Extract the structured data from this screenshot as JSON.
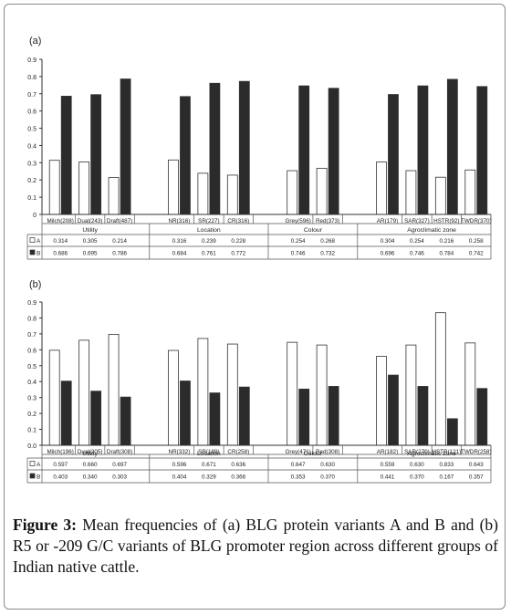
{
  "caption": {
    "label": "Figure 3:",
    "text": " Mean frequencies of (a) BLG protein variants A and B and (b) R5 or -209 G/C variants of BLG promoter region across different groups of Indian native cattle."
  },
  "chart_data": [
    {
      "type": "bar",
      "panel_label": "(a)",
      "ylim": [
        0,
        0.9
      ],
      "yticks": [
        "0",
        "0.1",
        "0.2",
        "0.3",
        "0.4",
        "0.5",
        "0.6",
        "0.7",
        "0.8",
        "0.9"
      ],
      "categories": [
        "Milch(208)",
        "Dual(243)",
        "Draft(487)",
        "NR(316)",
        "SR(227)",
        "CR(316)",
        "Grey(596)",
        "Red(373)",
        "AR(179)",
        "SAR(327)",
        "HSTR(92)",
        "TWDR(370)"
      ],
      "groups": [
        {
          "name": "Utility",
          "size": 3
        },
        {
          "name": "Location",
          "size": 3
        },
        {
          "name": "Colour",
          "size": 2
        },
        {
          "name": "Agroclimatic zone",
          "size": 4
        }
      ],
      "series": [
        {
          "name": "A",
          "color": "#ffffff",
          "values": [
            0.314,
            0.305,
            0.214,
            0.316,
            0.239,
            0.228,
            0.254,
            0.268,
            0.304,
            0.254,
            0.216,
            0.258
          ],
          "labels": [
            "0.314",
            "0.305",
            "0.214",
            "0.316",
            "0.239",
            "0.228",
            "0.254",
            "0.268",
            "0.304",
            "0.254",
            "0.216",
            "0.258"
          ]
        },
        {
          "name": "B",
          "color": "#2b2b2b",
          "values": [
            0.686,
            0.695,
            0.786,
            0.684,
            0.761,
            0.772,
            0.746,
            0.732,
            0.696,
            0.746,
            0.784,
            0.742
          ],
          "labels": [
            "0.686",
            "0.695",
            "0.786",
            "0.684",
            "0.761",
            "0.772",
            "0.746",
            "0.732",
            "0.696",
            "0.746",
            "0.784",
            "0.742"
          ]
        }
      ]
    },
    {
      "type": "bar",
      "panel_label": "(b)",
      "ylim": [
        0,
        0.9
      ],
      "yticks": [
        "0.0",
        "0.1",
        "0.2",
        "0.3",
        "0.4",
        "0.5",
        "0.6",
        "0.7",
        "0.8",
        "0.9"
      ],
      "categories": [
        "Milch(196)",
        "Dual(205)",
        "Draft(308)",
        "NR(332)",
        "SR(189)",
        "CR(258)",
        "Grey(471)",
        "Red(308)",
        "AR(182)",
        "SAR(270)",
        "HSTR(121)",
        "TWDR(258)"
      ],
      "groups": [
        {
          "name": "Utility",
          "size": 3
        },
        {
          "name": "Location",
          "size": 3
        },
        {
          "name": "Colour",
          "size": 2
        },
        {
          "name": "Agroclimatic zone",
          "size": 4
        }
      ],
      "series": [
        {
          "name": "A",
          "color": "#ffffff",
          "values": [
            0.597,
            0.66,
            0.697,
            0.596,
            0.671,
            0.636,
            0.647,
            0.63,
            0.559,
            0.63,
            0.833,
            0.643
          ],
          "labels": [
            "0.597",
            "0.660",
            "0.697",
            "0.596",
            "0.671",
            "0.636",
            "0.647",
            "0.630",
            "0.559",
            "0.630",
            "0.833",
            "0.643"
          ]
        },
        {
          "name": "B",
          "color": "#2b2b2b",
          "values": [
            0.403,
            0.34,
            0.303,
            0.404,
            0.329,
            0.366,
            0.353,
            0.37,
            0.441,
            0.37,
            0.167,
            0.357
          ],
          "labels": [
            "0.403",
            "0.340",
            "0.303",
            "0.404",
            "0.329",
            "0.366",
            "0.353",
            "0.370",
            "0.441",
            "0.370",
            "0.167",
            "0.357"
          ]
        }
      ]
    }
  ]
}
